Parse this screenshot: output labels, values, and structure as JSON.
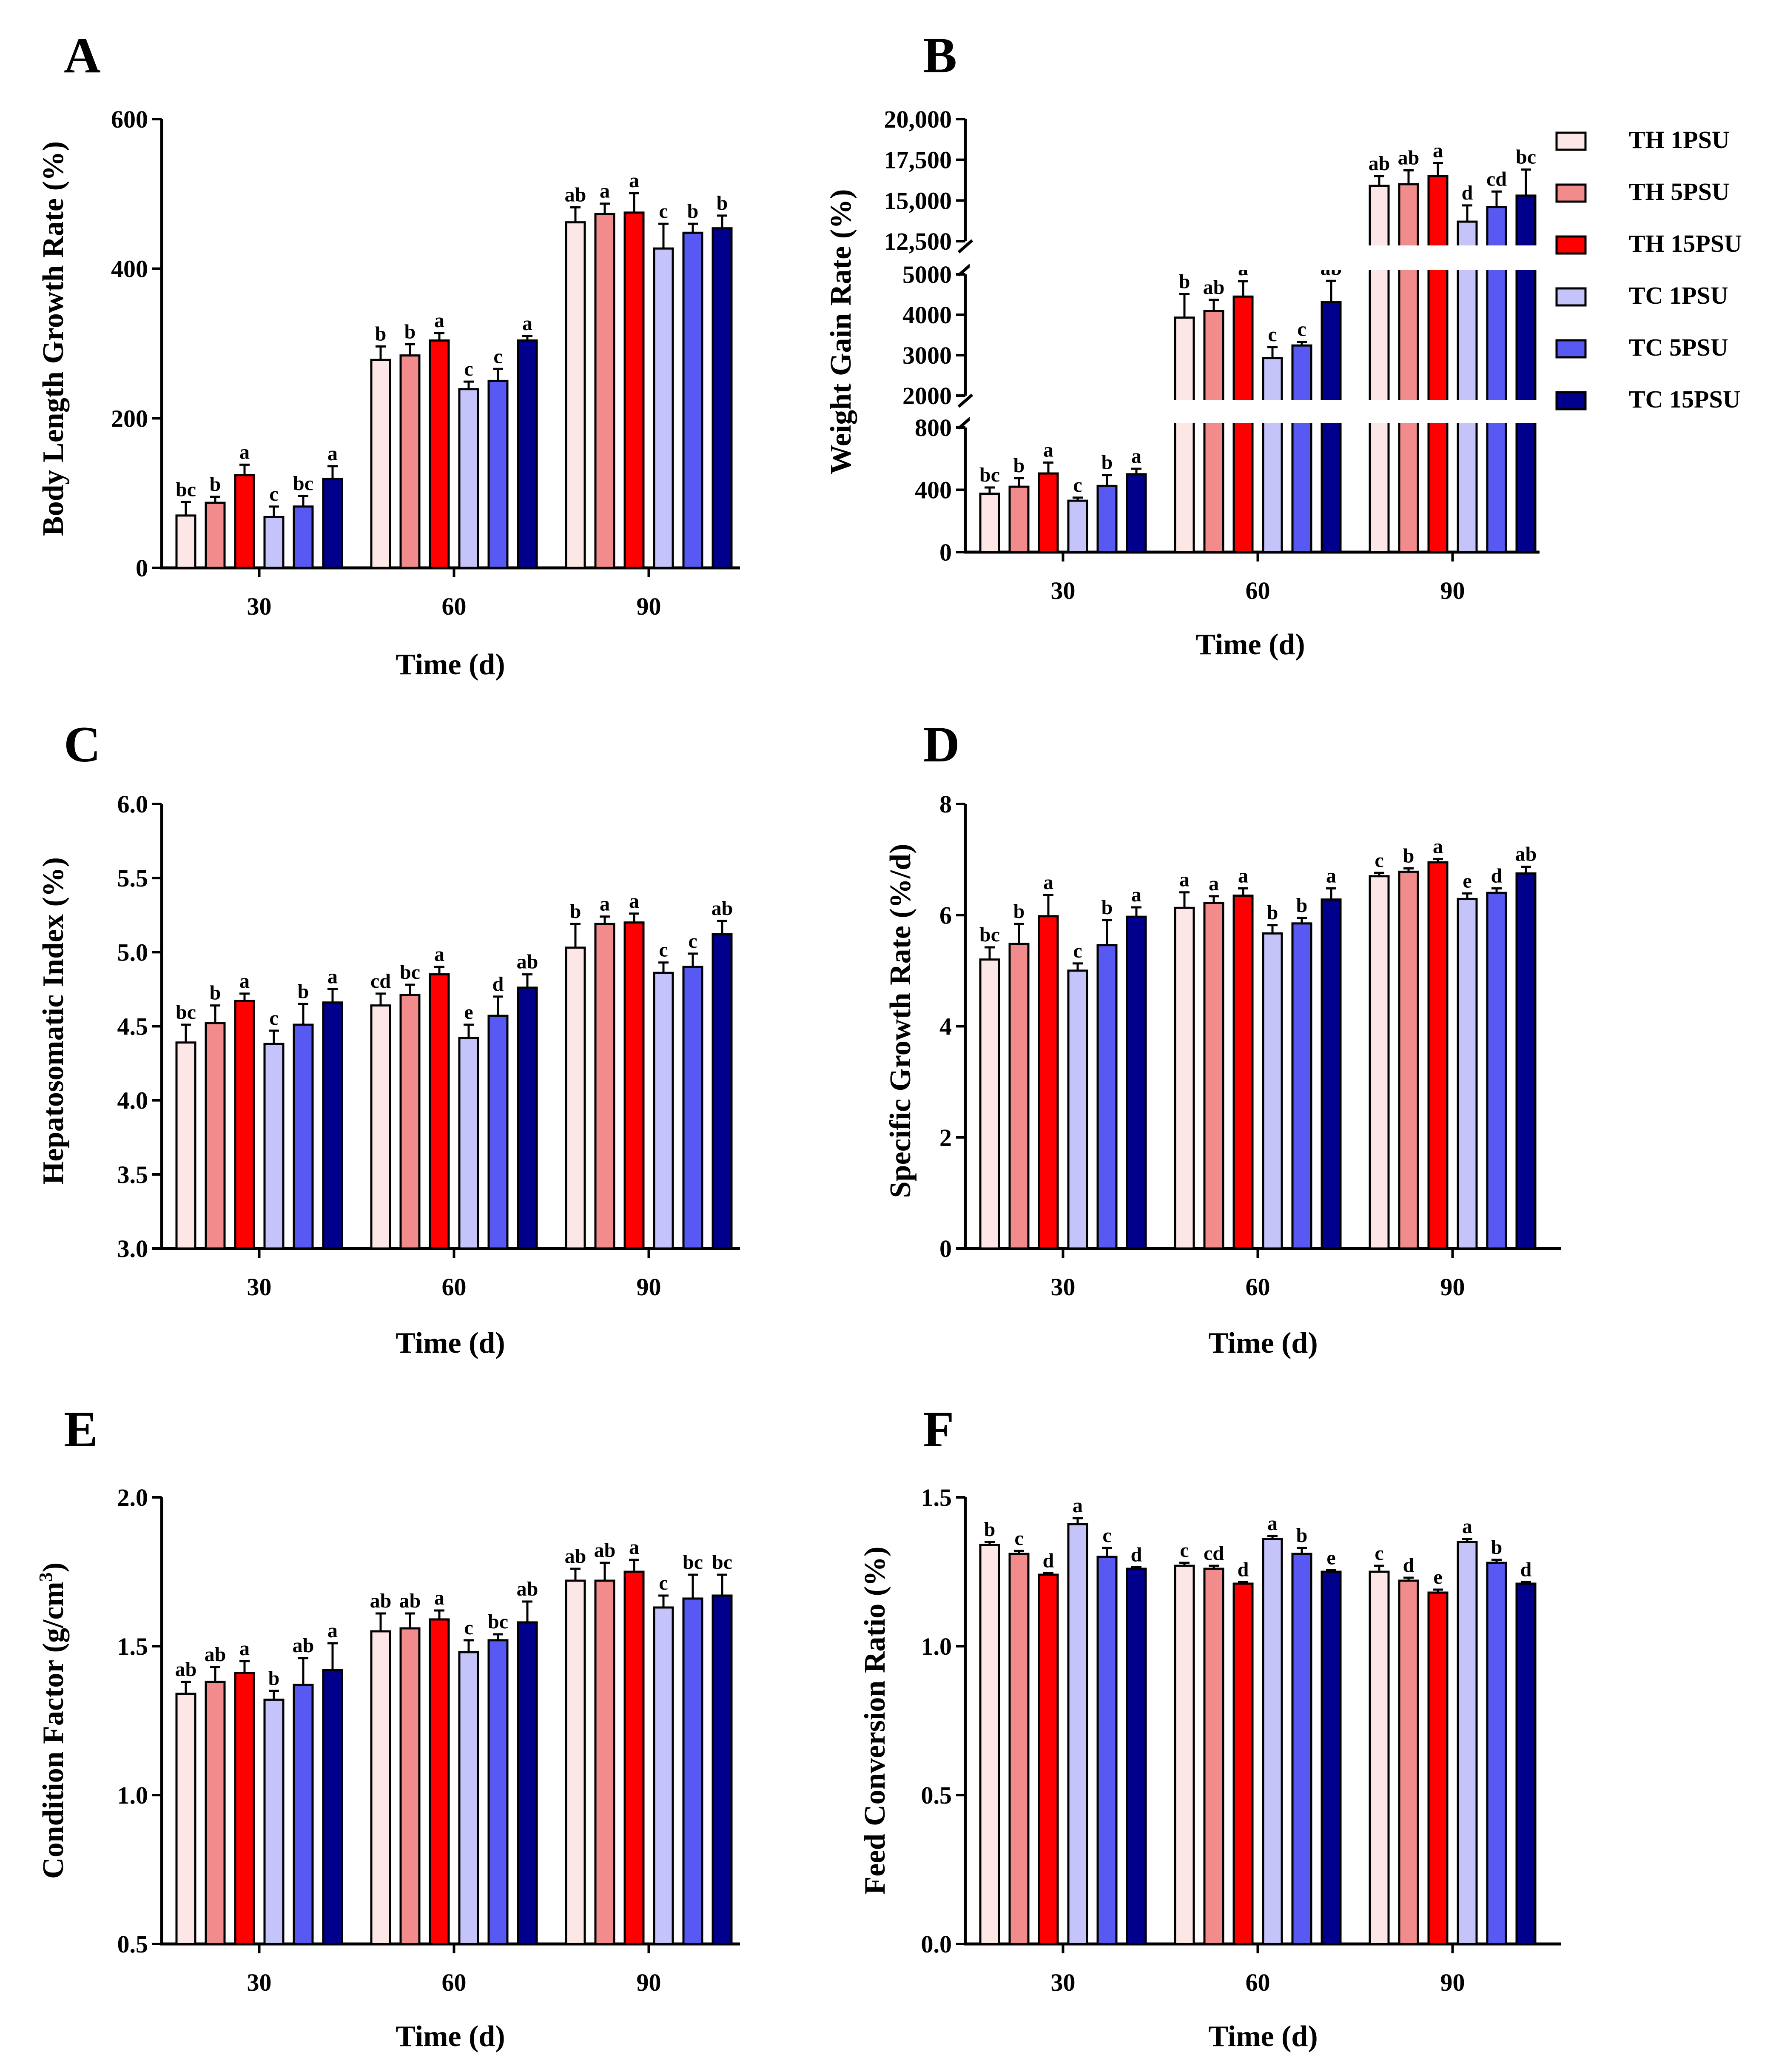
{
  "legend": [
    {
      "name": "TH 1PSU",
      "color": "#fde6e6"
    },
    {
      "name": "TH 5PSU",
      "color": "#f28b8b"
    },
    {
      "name": "TH 15PSU",
      "color": "#ff0000"
    },
    {
      "name": "TC 1PSU",
      "color": "#c4c4fa"
    },
    {
      "name": "TC 5PSU",
      "color": "#5858f2"
    },
    {
      "name": "TC 15PSU",
      "color": "#00008c"
    }
  ],
  "chart_data": [
    {
      "panel": "A",
      "type": "bar",
      "xlabel": "Time (d)",
      "ylabel": "Body Length Growth Rate (%)",
      "categories": [
        "30",
        "60",
        "90"
      ],
      "ylim": [
        0,
        600
      ],
      "yticks": [
        "0",
        "200",
        "400",
        "600"
      ],
      "series": [
        {
          "name": "TH 1PSU",
          "values": [
            70,
            278,
            462
          ],
          "errors": [
            18,
            18,
            20
          ],
          "labels": [
            "bc",
            "b",
            "ab"
          ]
        },
        {
          "name": "TH 5PSU",
          "values": [
            87,
            284,
            473
          ],
          "errors": [
            8,
            15,
            14
          ],
          "labels": [
            "b",
            "b",
            "a"
          ]
        },
        {
          "name": "TH 15PSU",
          "values": [
            124,
            304,
            475
          ],
          "errors": [
            14,
            10,
            26
          ],
          "labels": [
            "a",
            "a",
            "a"
          ]
        },
        {
          "name": "TC 1PSU",
          "values": [
            68,
            239,
            427
          ],
          "errors": [
            14,
            10,
            33
          ],
          "labels": [
            "c",
            "c",
            "c"
          ]
        },
        {
          "name": "TC 5PSU",
          "values": [
            82,
            250,
            448
          ],
          "errors": [
            14,
            16,
            12
          ],
          "labels": [
            "bc",
            "c",
            "b"
          ]
        },
        {
          "name": "TC 15PSU",
          "values": [
            119,
            304,
            454
          ],
          "errors": [
            17,
            6,
            17
          ],
          "labels": [
            "a",
            "a",
            "b"
          ]
        }
      ]
    },
    {
      "panel": "B",
      "type": "bar",
      "xlabel": "Time (d)",
      "ylabel": "Weight Gain Rate (%)",
      "categories": [
        "30",
        "60",
        "90"
      ],
      "broken_axis": true,
      "ytick_segments": [
        [
          "0",
          "400",
          "800"
        ],
        [
          "2000",
          "3000",
          "4000",
          "5000"
        ],
        [
          "12,500",
          "15,000",
          "17,500",
          "20,000"
        ]
      ],
      "series": [
        {
          "name": "TH 1PSU",
          "values": [
            375,
            3930,
            15900
          ],
          "errors": [
            40,
            580,
            600
          ],
          "labels": [
            "bc",
            "b",
            "ab"
          ]
        },
        {
          "name": "TH 5PSU",
          "values": [
            420,
            4090,
            16000
          ],
          "errors": [
            55,
            280,
            850
          ],
          "labels": [
            "b",
            "ab",
            "ab"
          ]
        },
        {
          "name": "TH 15PSU",
          "values": [
            505,
            4450,
            16500
          ],
          "errors": [
            70,
            380,
            800
          ],
          "labels": [
            "a",
            "a",
            "a"
          ]
        },
        {
          "name": "TC 1PSU",
          "values": [
            330,
            2930,
            13700
          ],
          "errors": [
            20,
            270,
            1000
          ],
          "labels": [
            "c",
            "c",
            "d"
          ]
        },
        {
          "name": "TC 5PSU",
          "values": [
            425,
            3240,
            14600
          ],
          "errors": [
            70,
            90,
            950
          ],
          "labels": [
            "b",
            "c",
            "cd"
          ]
        },
        {
          "name": "TC 15PSU",
          "values": [
            500,
            4310,
            15300
          ],
          "errors": [
            35,
            530,
            1600
          ],
          "labels": [
            "a",
            "ab",
            "bc"
          ]
        }
      ]
    },
    {
      "panel": "C",
      "type": "bar",
      "xlabel": "Time (d)",
      "ylabel": "Hepatosomatic Index (%)",
      "categories": [
        "30",
        "60",
        "90"
      ],
      "ylim": [
        3.0,
        6.0
      ],
      "yticks": [
        "3.0",
        "3.5",
        "4.0",
        "4.5",
        "5.0",
        "5.5",
        "6.0"
      ],
      "series": [
        {
          "name": "TH 1PSU",
          "values": [
            4.39,
            4.64,
            5.03
          ],
          "errors": [
            0.12,
            0.08,
            0.16
          ],
          "labels": [
            "bc",
            "cd",
            "b"
          ]
        },
        {
          "name": "TH 5PSU",
          "values": [
            4.52,
            4.71,
            5.19
          ],
          "errors": [
            0.12,
            0.07,
            0.05
          ],
          "labels": [
            "b",
            "bc",
            "a"
          ]
        },
        {
          "name": "TH 15PSU",
          "values": [
            4.67,
            4.85,
            5.2
          ],
          "errors": [
            0.05,
            0.05,
            0.06
          ],
          "labels": [
            "a",
            "a",
            "a"
          ]
        },
        {
          "name": "TC 1PSU",
          "values": [
            4.38,
            4.42,
            4.86
          ],
          "errors": [
            0.09,
            0.09,
            0.07
          ],
          "labels": [
            "c",
            "e",
            "c"
          ]
        },
        {
          "name": "TC 5PSU",
          "values": [
            4.51,
            4.57,
            4.9
          ],
          "errors": [
            0.14,
            0.13,
            0.09
          ],
          "labels": [
            "b",
            "d",
            "c"
          ]
        },
        {
          "name": "TC 15PSU",
          "values": [
            4.66,
            4.76,
            5.12
          ],
          "errors": [
            0.09,
            0.09,
            0.09
          ],
          "labels": [
            "a",
            "ab",
            "ab"
          ]
        }
      ]
    },
    {
      "panel": "D",
      "type": "bar",
      "xlabel": "Time (d)",
      "ylabel": "Specific Growth Rate (%/d)",
      "categories": [
        "30",
        "60",
        "90"
      ],
      "ylim": [
        0,
        8
      ],
      "yticks": [
        "0",
        "2",
        "4",
        "6",
        "8"
      ],
      "series": [
        {
          "name": "TH 1PSU",
          "values": [
            5.2,
            6.13,
            6.7
          ],
          "errors": [
            0.22,
            0.28,
            0.06
          ],
          "labels": [
            "bc",
            "a",
            "c"
          ]
        },
        {
          "name": "TH 5PSU",
          "values": [
            5.48,
            6.22,
            6.78
          ],
          "errors": [
            0.36,
            0.12,
            0.06
          ],
          "labels": [
            "b",
            "a",
            "b"
          ]
        },
        {
          "name": "TH 15PSU",
          "values": [
            5.98,
            6.35,
            6.95
          ],
          "errors": [
            0.38,
            0.13,
            0.06
          ],
          "labels": [
            "a",
            "a",
            "a"
          ]
        },
        {
          "name": "TC 1PSU",
          "values": [
            5.0,
            5.67,
            6.29
          ],
          "errors": [
            0.13,
            0.15,
            0.1
          ],
          "labels": [
            "c",
            "b",
            "e"
          ]
        },
        {
          "name": "TC 5PSU",
          "values": [
            5.46,
            5.85,
            6.4
          ],
          "errors": [
            0.45,
            0.1,
            0.08
          ],
          "labels": [
            "b",
            "b",
            "d"
          ]
        },
        {
          "name": "TC 15PSU",
          "values": [
            5.97,
            6.28,
            6.75
          ],
          "errors": [
            0.17,
            0.2,
            0.12
          ],
          "labels": [
            "a",
            "a",
            "ab"
          ]
        }
      ]
    },
    {
      "panel": "E",
      "type": "bar",
      "xlabel": "Time (d)",
      "ylabel_main": "Condition Factor (g/cm",
      "ylabel_sup": "3",
      "ylabel_end": ")",
      "categories": [
        "30",
        "60",
        "90"
      ],
      "ylim": [
        0.5,
        2.0
      ],
      "yticks": [
        "0.5",
        "1.0",
        "1.5",
        "2.0"
      ],
      "series": [
        {
          "name": "TH 1PSU",
          "values": [
            1.34,
            1.55,
            1.72
          ],
          "errors": [
            0.04,
            0.06,
            0.04
          ],
          "labels": [
            "ab",
            "ab",
            "ab"
          ]
        },
        {
          "name": "TH 5PSU",
          "values": [
            1.38,
            1.56,
            1.72
          ],
          "errors": [
            0.05,
            0.05,
            0.06
          ],
          "labels": [
            "ab",
            "ab",
            "ab"
          ]
        },
        {
          "name": "TH 15PSU",
          "values": [
            1.41,
            1.59,
            1.75
          ],
          "errors": [
            0.04,
            0.03,
            0.04
          ],
          "labels": [
            "a",
            "a",
            "a"
          ]
        },
        {
          "name": "TC 1PSU",
          "values": [
            1.32,
            1.48,
            1.63
          ],
          "errors": [
            0.03,
            0.04,
            0.04
          ],
          "labels": [
            "b",
            "c",
            "c"
          ]
        },
        {
          "name": "TC 5PSU",
          "values": [
            1.37,
            1.52,
            1.66
          ],
          "errors": [
            0.09,
            0.02,
            0.08
          ],
          "labels": [
            "ab",
            "bc",
            "bc"
          ]
        },
        {
          "name": "TC 15PSU",
          "values": [
            1.42,
            1.58,
            1.67
          ],
          "errors": [
            0.09,
            0.07,
            0.07
          ],
          "labels": [
            "a",
            "ab",
            "bc"
          ]
        }
      ]
    },
    {
      "panel": "F",
      "type": "bar",
      "xlabel": "Time (d)",
      "ylabel": "Feed Conversion Ratio (%)",
      "categories": [
        "30",
        "60",
        "90"
      ],
      "ylim": [
        0.0,
        1.5
      ],
      "yticks": [
        "0.0",
        "0.5",
        "1.0",
        "1.5"
      ],
      "series": [
        {
          "name": "TH 1PSU",
          "values": [
            1.34,
            1.27,
            1.25
          ],
          "errors": [
            0.01,
            0.01,
            0.02
          ],
          "labels": [
            "b",
            "c",
            "c"
          ]
        },
        {
          "name": "TH 5PSU",
          "values": [
            1.31,
            1.26,
            1.22
          ],
          "errors": [
            0.01,
            0.01,
            0.01
          ],
          "labels": [
            "c",
            "cd",
            "d"
          ]
        },
        {
          "name": "TH 15PSU",
          "values": [
            1.24,
            1.21,
            1.18
          ],
          "errors": [
            0.005,
            0.005,
            0.01
          ],
          "labels": [
            "d",
            "d",
            "e"
          ]
        },
        {
          "name": "TC 1PSU",
          "values": [
            1.41,
            1.36,
            1.35
          ],
          "errors": [
            0.02,
            0.01,
            0.01
          ],
          "labels": [
            "a",
            "a",
            "a"
          ]
        },
        {
          "name": "TC 5PSU",
          "values": [
            1.3,
            1.31,
            1.28
          ],
          "errors": [
            0.03,
            0.02,
            0.01
          ],
          "labels": [
            "c",
            "b",
            "b"
          ]
        },
        {
          "name": "TC 15PSU",
          "values": [
            1.26,
            1.25,
            1.21
          ],
          "errors": [
            0.005,
            0.005,
            0.005
          ],
          "labels": [
            "d",
            "e",
            "d"
          ]
        }
      ]
    }
  ]
}
